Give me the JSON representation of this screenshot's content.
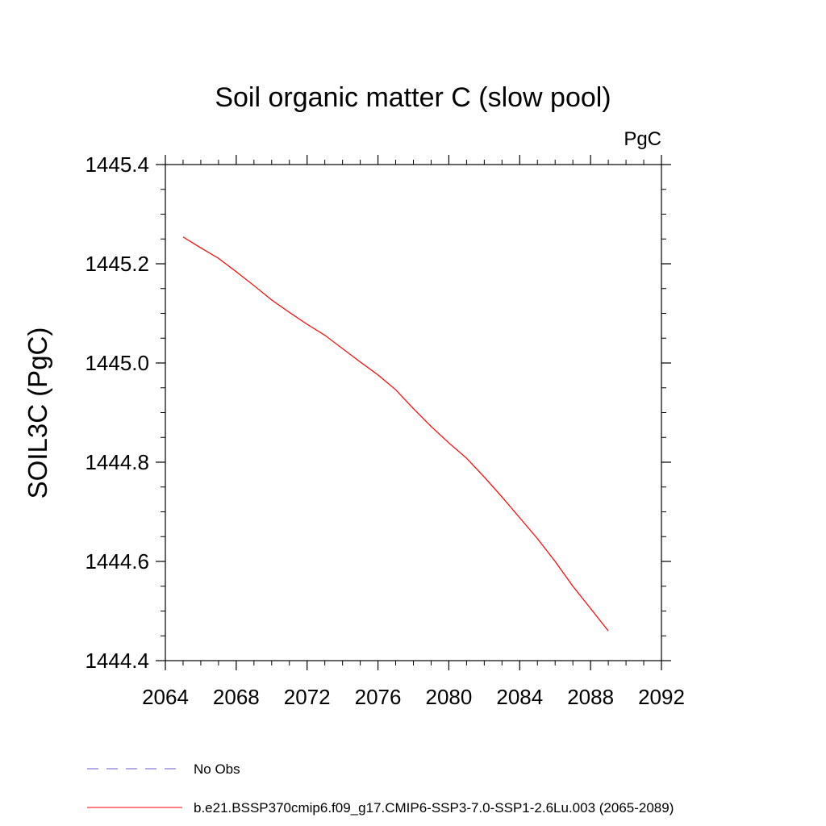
{
  "chart_data": {
    "type": "line",
    "title": "Soil organic matter C (slow pool)",
    "units": "PgC",
    "ylabel": "SOIL3C  (PgC)",
    "xlabel": "",
    "xlim": [
      2064,
      2092
    ],
    "ylim": [
      1444.4,
      1445.4
    ],
    "x_ticks": [
      "2064",
      "2068",
      "2072",
      "2076",
      "2080",
      "2084",
      "2088",
      "2092"
    ],
    "y_ticks": [
      "1444.4",
      "1444.6",
      "1444.8",
      "1445.0",
      "1445.2",
      "1445.4"
    ],
    "grid": false,
    "legend_position": "bottom",
    "series": [
      {
        "name": "b.e21.BSSP370cmip6.f09_g17.CMIP6-SSP3-7.0-SSP1-2.6Lu.003 (2065-2089)",
        "color": "#ff0000",
        "style": "solid",
        "x": [
          2065,
          2066,
          2067,
          2068,
          2069,
          2070,
          2071,
          2072,
          2073,
          2074,
          2075,
          2076,
          2077,
          2078,
          2079,
          2080,
          2081,
          2082,
          2083,
          2084,
          2085,
          2086,
          2087,
          2088,
          2089
        ],
        "y": [
          1445.254,
          1445.232,
          1445.211,
          1445.184,
          1445.156,
          1445.127,
          1445.102,
          1445.078,
          1445.056,
          1445.029,
          1445.002,
          1444.976,
          1444.946,
          1444.908,
          1444.872,
          1444.839,
          1444.808,
          1444.77,
          1444.73,
          1444.688,
          1444.646,
          1444.6,
          1444.55,
          1444.505,
          1444.46
        ]
      }
    ],
    "legend": [
      {
        "label": "No Obs",
        "color": "#6a5acd",
        "style": "dashed"
      },
      {
        "label": "b.e21.BSSP370cmip6.f09_g17.CMIP6-SSP3-7.0-SSP1-2.6Lu.003 (2065-2089)",
        "color": "#ff0000",
        "style": "solid"
      }
    ]
  }
}
